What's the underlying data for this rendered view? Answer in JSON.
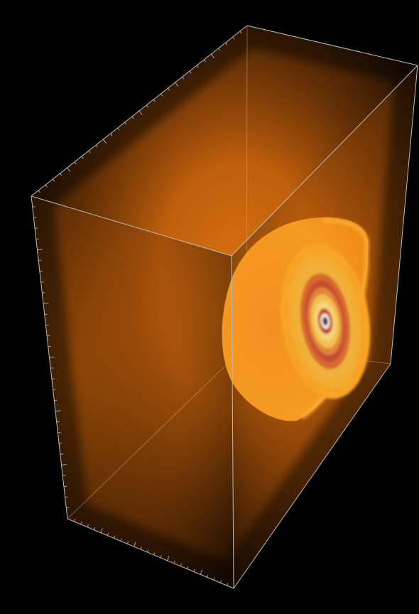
{
  "scene": {
    "background": "#000000",
    "glow_color": "#c9640d",
    "glow_core_color": "#d8720f",
    "edge_color": "#b7b7b7",
    "shell_outer_color": "#f5961e",
    "shell_ring_colors": [
      "#f7a826",
      "#f0b43a",
      "#cc5a2d",
      "#f4c050",
      "#c2402f",
      "#f8efe0",
      "#3b0f57"
    ],
    "icons": [
      "volume-render",
      "bounding-box",
      "tick-marks",
      "hemisphere-shell"
    ]
  }
}
